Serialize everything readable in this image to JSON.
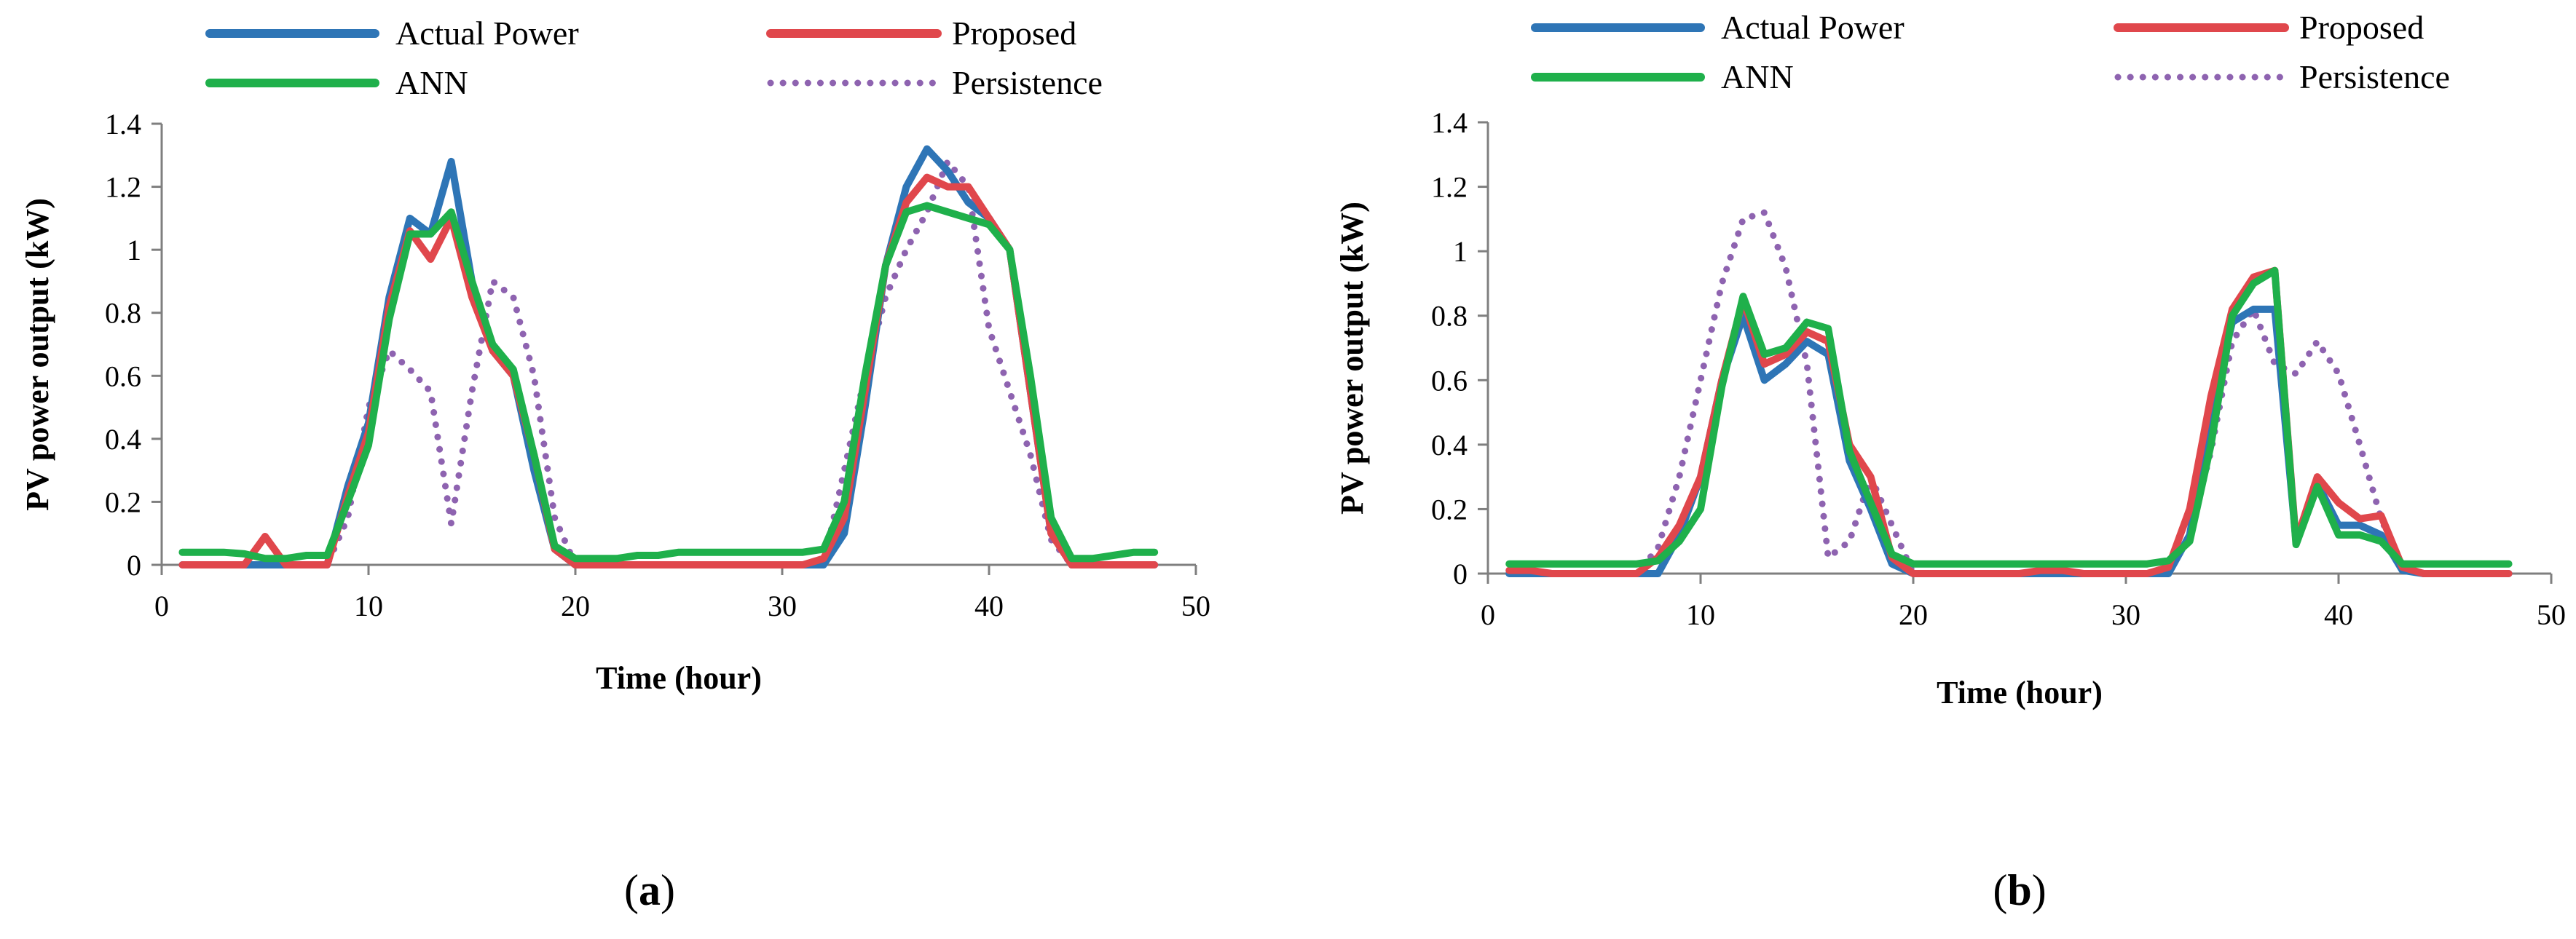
{
  "chart_data": [
    {
      "panel_label": "a",
      "type": "line",
      "title": "",
      "xlabel": "Time (hour)",
      "ylabel": "PV power output (kW)",
      "xlim": [
        0,
        50
      ],
      "ylim": [
        0,
        1.4
      ],
      "xticks": [
        0,
        10,
        20,
        30,
        40,
        50
      ],
      "xtick_labels": [
        "0",
        "10",
        "20",
        "30",
        "40",
        "50"
      ],
      "yticks": [
        0,
        0.2,
        0.4,
        0.6,
        0.8,
        1,
        1.2,
        1.4
      ],
      "ytick_labels": [
        "0",
        "0.2",
        "0.4",
        "0.6",
        "0.8",
        "1",
        "1.2",
        "1.4"
      ],
      "legend_position": "top",
      "series": [
        {
          "name": "Actual Power",
          "color": "#2E75B6",
          "style": "solid",
          "x": [
            1,
            2,
            3,
            4,
            5,
            6,
            7,
            8,
            9,
            10,
            11,
            12,
            13,
            14,
            15,
            16,
            17,
            18,
            19,
            20,
            21,
            22,
            23,
            24,
            25,
            26,
            27,
            28,
            29,
            30,
            31,
            32,
            33,
            34,
            35,
            36,
            37,
            38,
            39,
            40,
            41,
            42,
            43,
            44,
            45,
            46,
            47,
            48
          ],
          "values": [
            0,
            0,
            0,
            0,
            0,
            0,
            0,
            0,
            0.25,
            0.45,
            0.85,
            1.1,
            1.05,
            1.28,
            0.9,
            0.68,
            0.6,
            0.3,
            0.05,
            0,
            0,
            0,
            0,
            0,
            0,
            0,
            0,
            0,
            0,
            0,
            0,
            0,
            0.1,
            0.5,
            0.95,
            1.2,
            1.32,
            1.25,
            1.15,
            1.1,
            1.0,
            0.55,
            0.1,
            0,
            0,
            0,
            0,
            0
          ]
        },
        {
          "name": "Proposed",
          "color": "#E0474C",
          "style": "solid",
          "x": [
            1,
            2,
            3,
            4,
            5,
            6,
            7,
            8,
            9,
            10,
            11,
            12,
            13,
            14,
            15,
            16,
            17,
            18,
            19,
            20,
            21,
            22,
            23,
            24,
            25,
            26,
            27,
            28,
            29,
            30,
            31,
            32,
            33,
            34,
            35,
            36,
            37,
            38,
            39,
            40,
            41,
            42,
            43,
            44,
            45,
            46,
            47,
            48
          ],
          "values": [
            0,
            0,
            0,
            0,
            0.09,
            0,
            0,
            0,
            0.22,
            0.42,
            0.82,
            1.06,
            0.97,
            1.1,
            0.85,
            0.68,
            0.6,
            0.35,
            0.05,
            0,
            0,
            0,
            0,
            0,
            0,
            0,
            0,
            0,
            0,
            0,
            0,
            0.02,
            0.15,
            0.55,
            0.95,
            1.15,
            1.23,
            1.2,
            1.2,
            1.1,
            1.0,
            0.55,
            0.1,
            0,
            0,
            0,
            0,
            0
          ]
        },
        {
          "name": "ANN",
          "color": "#1FB04B",
          "style": "solid",
          "x": [
            1,
            2,
            3,
            4,
            5,
            6,
            7,
            8,
            9,
            10,
            11,
            12,
            13,
            14,
            15,
            16,
            17,
            18,
            19,
            20,
            21,
            22,
            23,
            24,
            25,
            26,
            27,
            28,
            29,
            30,
            31,
            32,
            33,
            34,
            35,
            36,
            37,
            38,
            39,
            40,
            41,
            42,
            43,
            44,
            45,
            46,
            47,
            48
          ],
          "values": [
            0.04,
            0.04,
            0.04,
            0.035,
            0.02,
            0.02,
            0.03,
            0.03,
            0.2,
            0.38,
            0.78,
            1.05,
            1.05,
            1.12,
            0.9,
            0.7,
            0.62,
            0.35,
            0.06,
            0.02,
            0.02,
            0.02,
            0.03,
            0.03,
            0.04,
            0.04,
            0.04,
            0.04,
            0.04,
            0.04,
            0.04,
            0.05,
            0.2,
            0.6,
            0.95,
            1.12,
            1.14,
            1.12,
            1.1,
            1.08,
            1.0,
            0.6,
            0.15,
            0.02,
            0.02,
            0.03,
            0.04,
            0.04
          ]
        },
        {
          "name": "Persistence",
          "color": "#8E63B0",
          "style": "dotted",
          "x": [
            1,
            2,
            3,
            4,
            5,
            6,
            7,
            8,
            9,
            10,
            11,
            12,
            13,
            14,
            15,
            16,
            17,
            18,
            19,
            20,
            21,
            22,
            23,
            24,
            25,
            26,
            27,
            28,
            29,
            30,
            31,
            32,
            33,
            34,
            35,
            36,
            37,
            38,
            39,
            40,
            41,
            42,
            43,
            44,
            45,
            46,
            47,
            48
          ],
          "values": [
            0,
            0,
            0,
            0,
            0,
            0,
            0,
            0,
            0.15,
            0.5,
            0.68,
            0.62,
            0.55,
            0.13,
            0.55,
            0.9,
            0.85,
            0.6,
            0.15,
            0,
            0,
            0,
            0,
            0,
            0,
            0,
            0,
            0,
            0,
            0,
            0,
            0,
            0.3,
            0.6,
            0.85,
            1.0,
            1.12,
            1.28,
            1.2,
            0.75,
            0.55,
            0.35,
            0.08,
            0,
            0,
            0,
            0,
            0
          ]
        }
      ]
    },
    {
      "panel_label": "b",
      "type": "line",
      "title": "",
      "xlabel": "Time (hour)",
      "ylabel": "PV power output (kW)",
      "xlim": [
        0,
        50
      ],
      "ylim": [
        0,
        1.4
      ],
      "xticks": [
        0,
        10,
        20,
        30,
        40,
        50
      ],
      "xtick_labels": [
        "0",
        "10",
        "20",
        "30",
        "40",
        "50"
      ],
      "yticks": [
        0,
        0.2,
        0.4,
        0.6,
        0.8,
        1,
        1.2,
        1.4
      ],
      "ytick_labels": [
        "0",
        "0.2",
        "0.4",
        "0.6",
        "0.8",
        "1",
        "1.2",
        "1.4"
      ],
      "legend_position": "top",
      "series": [
        {
          "name": "Actual Power",
          "color": "#2E75B6",
          "style": "solid",
          "x": [
            1,
            2,
            3,
            4,
            5,
            6,
            7,
            8,
            9,
            10,
            11,
            12,
            13,
            14,
            15,
            16,
            17,
            18,
            19,
            20,
            21,
            22,
            23,
            24,
            25,
            26,
            27,
            28,
            29,
            30,
            31,
            32,
            33,
            34,
            35,
            36,
            37,
            38,
            39,
            40,
            41,
            42,
            43,
            44,
            45,
            46,
            47,
            48
          ],
          "values": [
            0,
            0,
            0,
            0,
            0,
            0,
            0,
            0,
            0.12,
            0.3,
            0.6,
            0.8,
            0.6,
            0.65,
            0.72,
            0.68,
            0.35,
            0.2,
            0.03,
            0,
            0,
            0,
            0,
            0,
            0,
            0,
            0,
            0,
            0,
            0,
            0,
            0,
            0.12,
            0.5,
            0.78,
            0.82,
            0.82,
            0.1,
            0.28,
            0.15,
            0.15,
            0.12,
            0.01,
            0,
            0,
            0,
            0,
            0
          ]
        },
        {
          "name": "Proposed",
          "color": "#E0474C",
          "style": "solid",
          "x": [
            1,
            2,
            3,
            4,
            5,
            6,
            7,
            8,
            9,
            10,
            11,
            12,
            13,
            14,
            15,
            16,
            17,
            18,
            19,
            20,
            21,
            22,
            23,
            24,
            25,
            26,
            27,
            28,
            29,
            30,
            31,
            32,
            33,
            34,
            35,
            36,
            37,
            38,
            39,
            40,
            41,
            42,
            43,
            44,
            45,
            46,
            47,
            48
          ],
          "values": [
            0.01,
            0.01,
            0,
            0,
            0,
            0,
            0,
            0.05,
            0.15,
            0.3,
            0.6,
            0.85,
            0.65,
            0.68,
            0.75,
            0.72,
            0.4,
            0.3,
            0.05,
            0,
            0,
            0,
            0,
            0,
            0,
            0.01,
            0.01,
            0,
            0,
            0,
            0,
            0.02,
            0.2,
            0.55,
            0.82,
            0.92,
            0.94,
            0.1,
            0.3,
            0.22,
            0.17,
            0.18,
            0.02,
            0,
            0,
            0,
            0,
            0
          ]
        },
        {
          "name": "ANN",
          "color": "#1FB04B",
          "style": "solid",
          "x": [
            1,
            2,
            3,
            4,
            5,
            6,
            7,
            8,
            9,
            10,
            11,
            12,
            13,
            14,
            15,
            16,
            17,
            18,
            19,
            20,
            21,
            22,
            23,
            24,
            25,
            26,
            27,
            28,
            29,
            30,
            31,
            32,
            33,
            34,
            35,
            36,
            37,
            38,
            39,
            40,
            41,
            42,
            43,
            44,
            45,
            46,
            47,
            48
          ],
          "values": [
            0.03,
            0.03,
            0.03,
            0.03,
            0.03,
            0.03,
            0.03,
            0.04,
            0.1,
            0.2,
            0.58,
            0.86,
            0.68,
            0.7,
            0.78,
            0.76,
            0.38,
            0.22,
            0.06,
            0.03,
            0.03,
            0.03,
            0.03,
            0.03,
            0.03,
            0.03,
            0.03,
            0.03,
            0.03,
            0.03,
            0.03,
            0.04,
            0.1,
            0.4,
            0.8,
            0.9,
            0.94,
            0.09,
            0.27,
            0.12,
            0.12,
            0.1,
            0.03,
            0.03,
            0.03,
            0.03,
            0.03,
            0.03
          ]
        },
        {
          "name": "Persistence",
          "color": "#8E63B0",
          "style": "dotted",
          "x": [
            1,
            2,
            3,
            4,
            5,
            6,
            7,
            8,
            9,
            10,
            11,
            12,
            13,
            14,
            15,
            16,
            17,
            18,
            19,
            20,
            21,
            22,
            23,
            24,
            25,
            26,
            27,
            28,
            29,
            30,
            31,
            32,
            33,
            34,
            35,
            36,
            37,
            38,
            39,
            40,
            41,
            42,
            43,
            44,
            45,
            46,
            47,
            48
          ],
          "values": [
            0,
            0,
            0,
            0,
            0,
            0,
            0,
            0.08,
            0.3,
            0.6,
            0.9,
            1.1,
            1.12,
            0.95,
            0.65,
            0.05,
            0.1,
            0.3,
            0.15,
            0,
            0,
            0,
            0,
            0,
            0,
            0,
            0,
            0,
            0,
            0,
            0,
            0,
            0.12,
            0.38,
            0.72,
            0.82,
            0.65,
            0.62,
            0.72,
            0.62,
            0.4,
            0.17,
            0.02,
            0,
            0,
            0,
            0,
            0
          ]
        }
      ]
    }
  ]
}
